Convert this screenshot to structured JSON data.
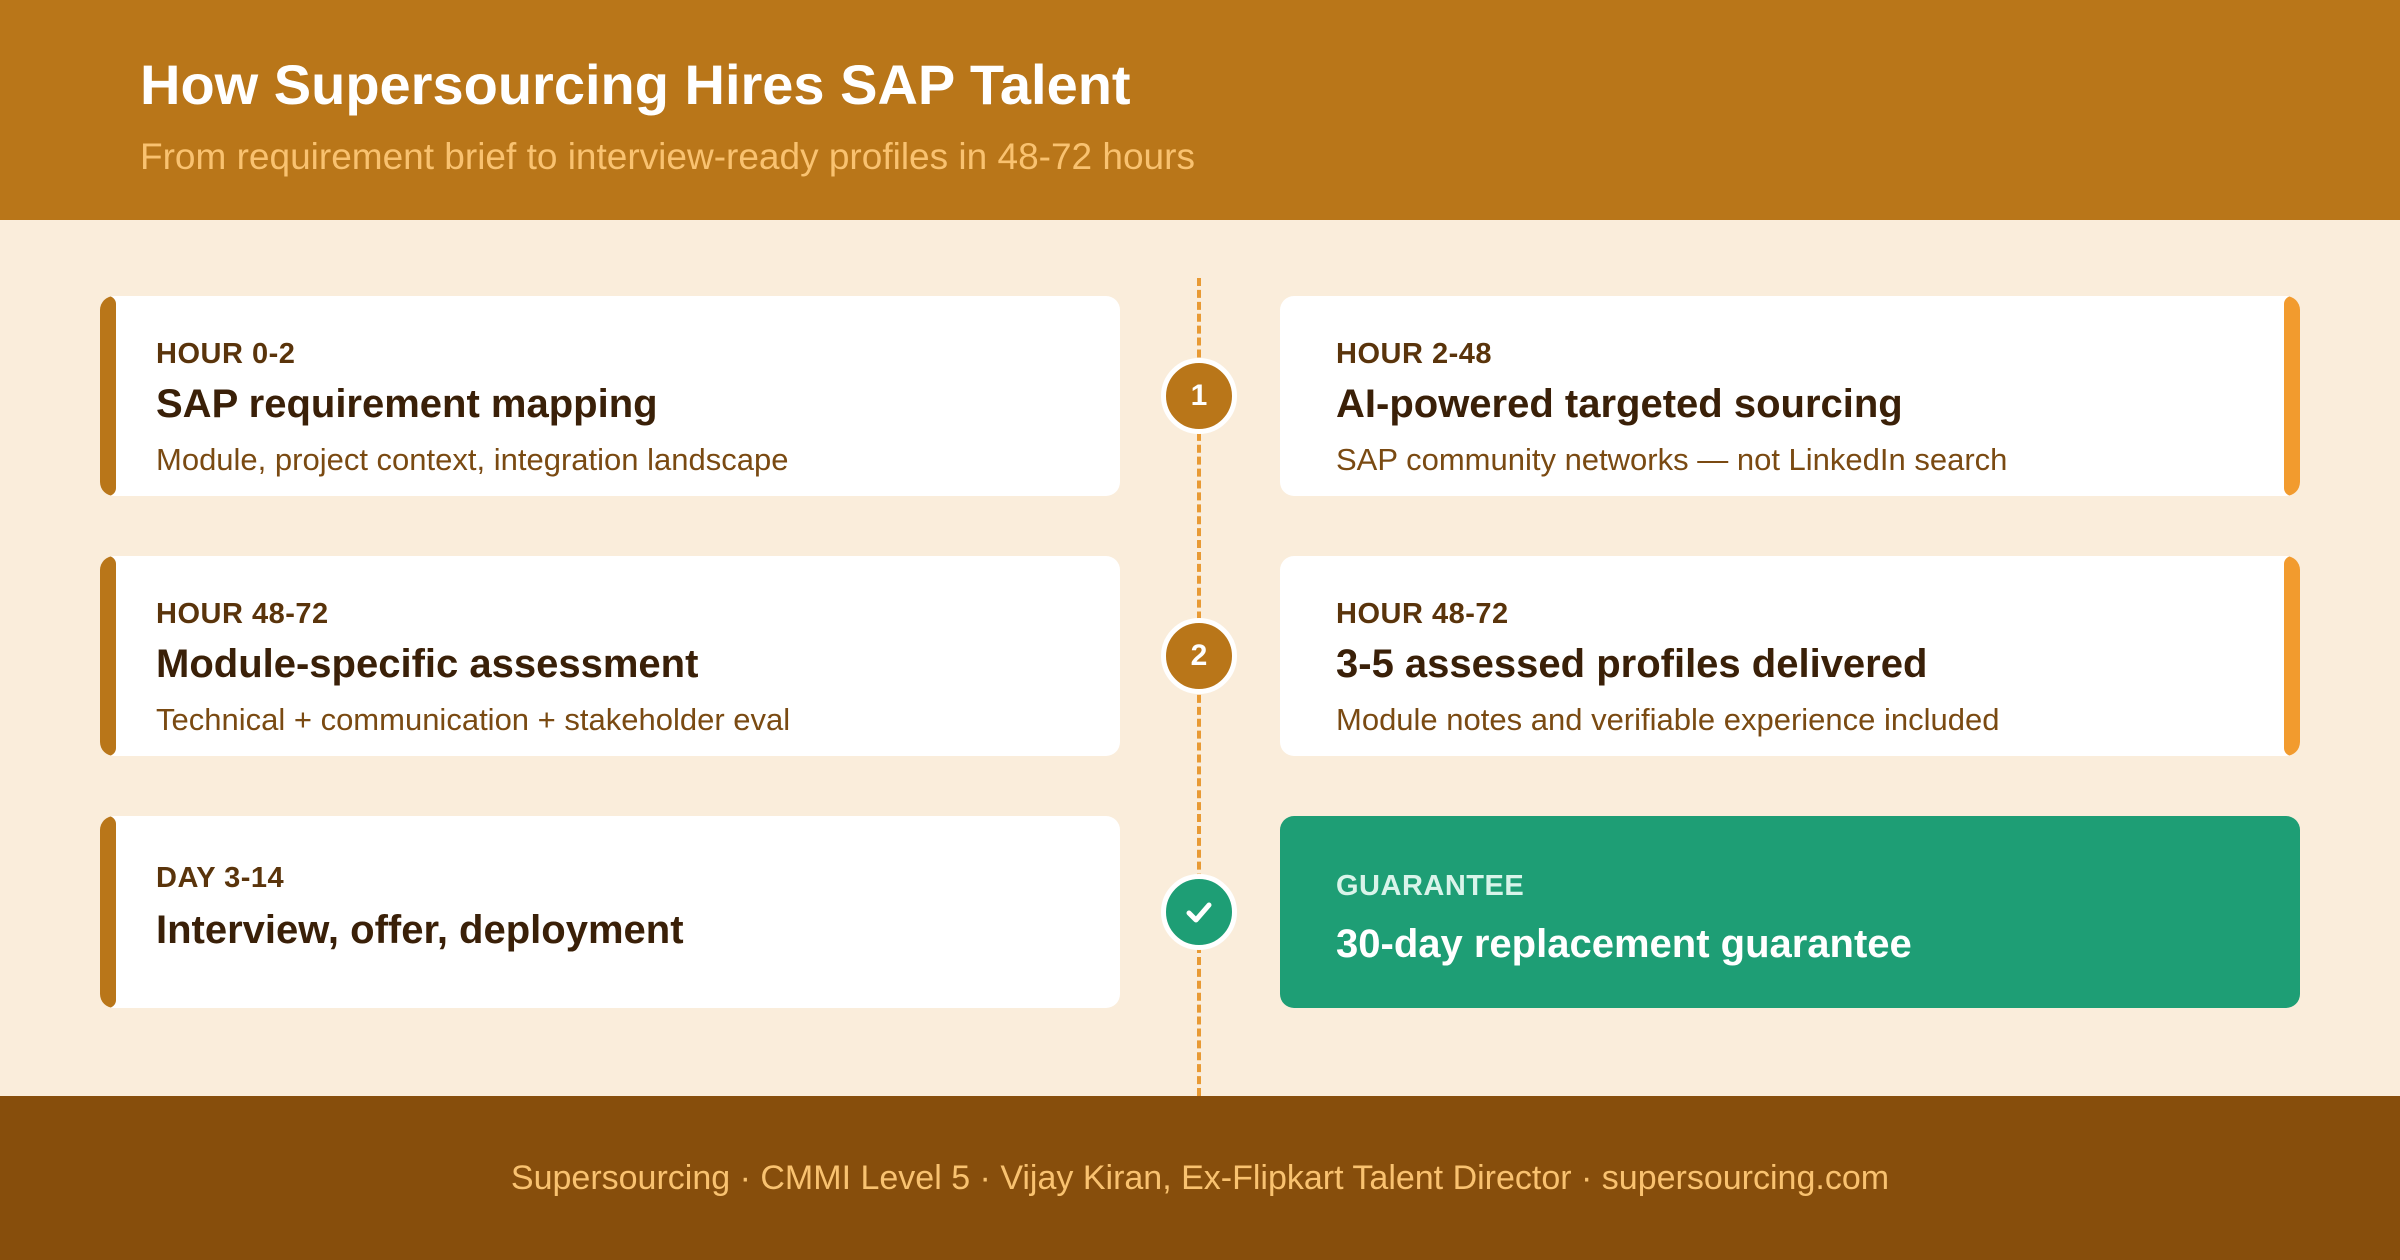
{
  "header": {
    "title": "How Supersourcing Hires SAP Talent",
    "subtitle": "From requirement brief to interview-ready profiles in 48-72 hours"
  },
  "steps": [
    {
      "label": "HOUR 0-2",
      "heading": "SAP requirement mapping",
      "desc": "Module, project context, integration landscape"
    },
    {
      "label": "HOUR 2-48",
      "heading": "AI-powered targeted sourcing",
      "desc": "SAP community networks — not LinkedIn search"
    },
    {
      "label": "HOUR 48-72",
      "heading": "Module-specific assessment",
      "desc": "Technical + communication + stakeholder eval"
    },
    {
      "label": "HOUR 48-72",
      "heading": "3-5 assessed profiles delivered",
      "desc": "Module notes and verifiable experience included"
    },
    {
      "label": "DAY 3-14",
      "heading": "Interview, offer, deployment"
    }
  ],
  "guarantee": {
    "label": "GUARANTEE",
    "heading": "30-day replacement guarantee"
  },
  "nodes": [
    {
      "text": "1"
    },
    {
      "text": "2"
    },
    {
      "icon": "check-icon"
    }
  ],
  "footer": {
    "text": "Supersourcing · CMMI Level 5 · Vijay Kiran, Ex-Flipkart Talent Director · supersourcing.com"
  },
  "colors": {
    "header_bg": "#B97619",
    "footer_bg": "#874E0C",
    "page_bg": "#FAEDDB",
    "accent_left": "#B97619",
    "accent_right": "#F29B2E",
    "guarantee_green": "#1E9E75"
  }
}
